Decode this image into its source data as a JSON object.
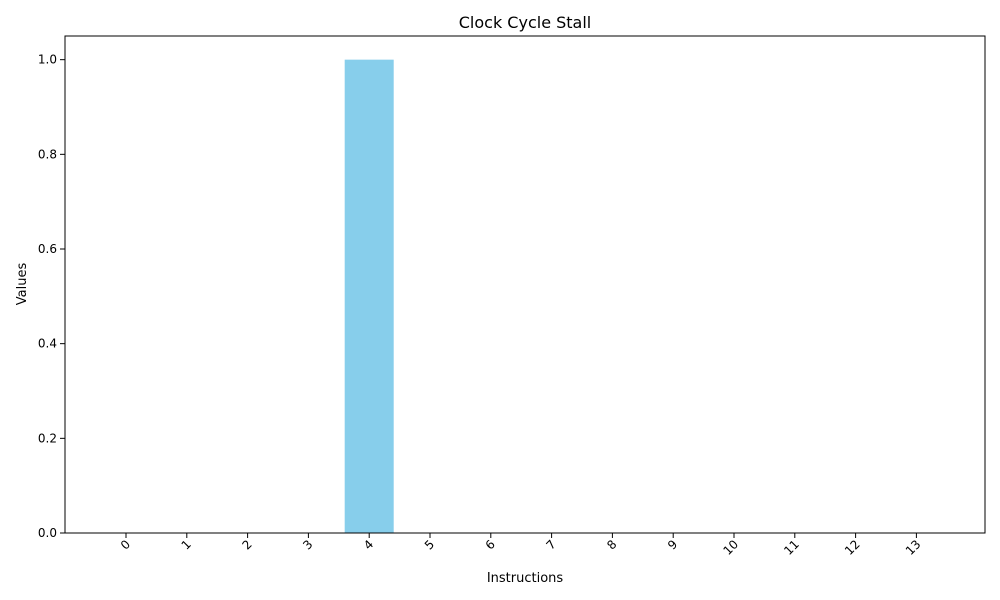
{
  "chart_data": {
    "type": "bar",
    "title": "Clock Cycle Stall",
    "xlabel": "Instructions",
    "ylabel": "Values",
    "categories": [
      "0",
      "1",
      "2",
      "3",
      "4",
      "5",
      "6",
      "7",
      "8",
      "9",
      "10",
      "11",
      "12",
      "13"
    ],
    "values": [
      0,
      0,
      0,
      0,
      1,
      0,
      0,
      0,
      0,
      0,
      0,
      0,
      0,
      0
    ],
    "ylim": [
      0,
      1.05
    ],
    "yticks": [
      "0.0",
      "0.2",
      "0.4",
      "0.6",
      "0.8",
      "1.0"
    ],
    "ytick_values": [
      0,
      0.2,
      0.4,
      0.6,
      0.8,
      1.0
    ],
    "bar_color": "#87ceeb",
    "grid": false,
    "legend": "none"
  }
}
